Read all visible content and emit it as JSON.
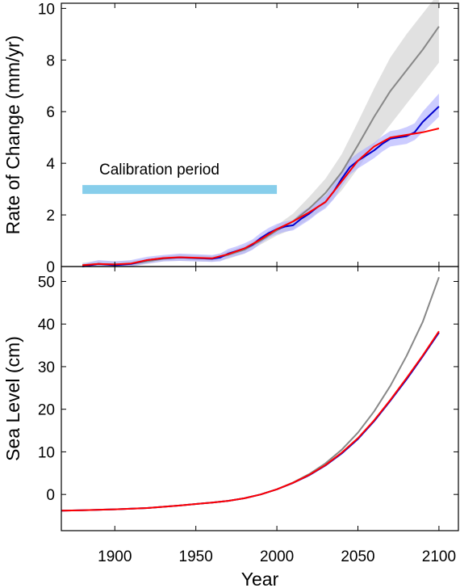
{
  "chart_data": [
    {
      "type": "line",
      "xlim": [
        1867,
        2112
      ],
      "ylim": [
        0,
        10.2
      ],
      "xlabel": "",
      "ylabel": "Rate of Change (mm/yr)",
      "xticks": [
        1900,
        1950,
        2000,
        2050,
        2100
      ],
      "yticks": [
        0,
        2,
        4,
        6,
        8,
        10
      ],
      "grid": false,
      "annotation": {
        "text": "Calibration period",
        "x_range": [
          1880,
          2000
        ],
        "y": 3.0,
        "color": "#87ceeb"
      },
      "series": [
        {
          "color": "#888888",
          "x": [
            1880,
            1890,
            1900,
            1910,
            1920,
            1930,
            1940,
            1950,
            1960,
            1970,
            1980,
            1990,
            2000,
            2010,
            2020,
            2030,
            2040,
            2050,
            2060,
            2070,
            2080,
            2090,
            2100
          ],
          "y": [
            0.05,
            0.1,
            0.08,
            0.1,
            0.2,
            0.3,
            0.35,
            0.32,
            0.3,
            0.45,
            0.65,
            1.0,
            1.4,
            1.75,
            2.25,
            2.85,
            3.65,
            4.7,
            5.8,
            6.8,
            7.6,
            8.4,
            9.3
          ],
          "band_lower": [
            0.0,
            0.0,
            0.0,
            0.0,
            0.1,
            0.2,
            0.22,
            0.2,
            0.18,
            0.3,
            0.5,
            0.85,
            1.2,
            1.45,
            1.85,
            2.3,
            2.95,
            3.8,
            4.7,
            5.5,
            6.3,
            7.1,
            7.9
          ],
          "band_upper": [
            0.15,
            0.2,
            0.2,
            0.22,
            0.3,
            0.4,
            0.48,
            0.45,
            0.42,
            0.6,
            0.8,
            1.15,
            1.6,
            2.05,
            2.7,
            3.4,
            4.35,
            5.6,
            6.9,
            8.1,
            9.0,
            9.8,
            10.6
          ]
        },
        {
          "color": "#0000cc",
          "x": [
            1880,
            1885,
            1890,
            1900,
            1910,
            1920,
            1930,
            1940,
            1950,
            1960,
            1965,
            1970,
            1975,
            1980,
            1985,
            1990,
            1995,
            2000,
            2005,
            2010,
            2015,
            2020,
            2025,
            2030,
            2035,
            2040,
            2045,
            2050,
            2055,
            2060,
            2065,
            2070,
            2075,
            2080,
            2085,
            2090,
            2095,
            2100
          ],
          "y": [
            0.0,
            0.05,
            0.1,
            0.05,
            0.1,
            0.25,
            0.32,
            0.35,
            0.33,
            0.3,
            0.35,
            0.5,
            0.6,
            0.7,
            0.85,
            1.1,
            1.3,
            1.45,
            1.55,
            1.6,
            1.85,
            2.05,
            2.3,
            2.5,
            2.9,
            3.4,
            3.85,
            4.1,
            4.3,
            4.5,
            4.75,
            4.95,
            5.0,
            5.05,
            5.2,
            5.6,
            5.9,
            6.2
          ],
          "band_lower": [
            0.0,
            0.0,
            0.0,
            0.0,
            0.0,
            0.12,
            0.2,
            0.22,
            0.2,
            0.18,
            0.2,
            0.33,
            0.42,
            0.5,
            0.65,
            0.9,
            1.1,
            1.25,
            1.35,
            1.4,
            1.6,
            1.8,
            2.05,
            2.25,
            2.6,
            3.1,
            3.55,
            3.8,
            4.0,
            4.2,
            4.45,
            4.65,
            4.7,
            4.75,
            4.9,
            5.2,
            5.5,
            5.8
          ],
          "band_upper": [
            0.1,
            0.18,
            0.25,
            0.2,
            0.25,
            0.38,
            0.45,
            0.5,
            0.48,
            0.45,
            0.5,
            0.68,
            0.78,
            0.9,
            1.05,
            1.3,
            1.5,
            1.65,
            1.75,
            1.8,
            2.1,
            2.3,
            2.55,
            2.75,
            3.2,
            3.7,
            4.15,
            4.4,
            4.6,
            4.8,
            5.05,
            5.25,
            5.3,
            5.4,
            5.55,
            6.0,
            6.35,
            6.7
          ]
        },
        {
          "color": "#ff0000",
          "x": [
            1880,
            1890,
            1900,
            1910,
            1920,
            1930,
            1940,
            1950,
            1960,
            1970,
            1980,
            1990,
            2000,
            2010,
            2020,
            2030,
            2040,
            2050,
            2060,
            2070,
            2080,
            2090,
            2100
          ],
          "y": [
            0.05,
            0.1,
            0.08,
            0.12,
            0.25,
            0.33,
            0.36,
            0.34,
            0.32,
            0.48,
            0.7,
            1.05,
            1.45,
            1.75,
            2.1,
            2.5,
            3.3,
            4.1,
            4.65,
            5.0,
            5.1,
            5.2,
            5.35
          ]
        }
      ]
    },
    {
      "type": "line",
      "xlim": [
        1867,
        2112
      ],
      "ylim": [
        -8.5,
        53.5
      ],
      "xlabel": "Year",
      "ylabel": "Sea Level (cm)",
      "xticks": [
        1900,
        1950,
        2000,
        2050,
        2100
      ],
      "yticks": [
        0,
        10,
        20,
        30,
        40,
        50
      ],
      "grid": false,
      "series": [
        {
          "color": "#888888",
          "x": [
            1867,
            1880,
            1900,
            1920,
            1940,
            1960,
            1970,
            1980,
            1990,
            2000,
            2010,
            2020,
            2030,
            2040,
            2050,
            2060,
            2070,
            2080,
            2090,
            2100
          ],
          "y": [
            -3.8,
            -3.7,
            -3.5,
            -3.2,
            -2.6,
            -1.9,
            -1.5,
            -0.9,
            0.0,
            1.2,
            2.8,
            4.8,
            7.3,
            10.5,
            14.5,
            19.5,
            25.5,
            32.5,
            40.5,
            51.0
          ]
        },
        {
          "color": "#0000cc",
          "x": [
            1867,
            1880,
            1900,
            1920,
            1940,
            1960,
            1970,
            1980,
            1990,
            2000,
            2010,
            2020,
            2030,
            2040,
            2050,
            2060,
            2070,
            2080,
            2090,
            2100
          ],
          "y": [
            -3.8,
            -3.7,
            -3.5,
            -3.2,
            -2.6,
            -1.9,
            -1.5,
            -0.9,
            0.0,
            1.2,
            2.7,
            4.5,
            6.8,
            9.6,
            13.0,
            17.2,
            22.0,
            27.0,
            32.4,
            38.0
          ]
        },
        {
          "color": "#ff0000",
          "x": [
            1867,
            1880,
            1900,
            1920,
            1940,
            1960,
            1970,
            1980,
            1990,
            2000,
            2010,
            2020,
            2030,
            2040,
            2050,
            2060,
            2070,
            2080,
            2090,
            2100
          ],
          "y": [
            -3.8,
            -3.7,
            -3.5,
            -3.2,
            -2.6,
            -1.9,
            -1.5,
            -0.9,
            0.0,
            1.2,
            2.75,
            4.6,
            6.9,
            9.8,
            13.2,
            17.4,
            22.2,
            27.3,
            32.6,
            38.3
          ]
        }
      ]
    }
  ]
}
